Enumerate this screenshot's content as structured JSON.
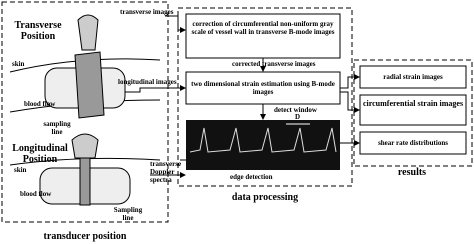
{
  "transducer_panel": {
    "title": "transducer position",
    "transverse": {
      "title": "Transverse Position",
      "skin": "skin",
      "blood_flow": "blood flow",
      "sampling_line": "sampling line"
    },
    "longitudinal": {
      "title": "Longitudinal Position",
      "skin": "skin",
      "blood_flow": "blood flow",
      "sampling_line": "Sampling line"
    }
  },
  "data_processing": {
    "title": "data processing",
    "inputs": {
      "transverse": "transverse images",
      "longitudinal": "longitudinal images",
      "doppler": "transverse Doppler spectra"
    },
    "steps": {
      "correction": "correction of circumferential non-uniform gray scale of vessel wall in transverse B-mode images",
      "corrected": "corrected transverse images",
      "strain": "two dimensional strain estimation using B-mode images",
      "detect_window": "detect window",
      "window_symbol": "D",
      "edge_detection": "edge detection"
    }
  },
  "results": {
    "title": "results",
    "items": [
      "radial strain images",
      "circumferential strain images",
      "shear rate distributions"
    ]
  }
}
